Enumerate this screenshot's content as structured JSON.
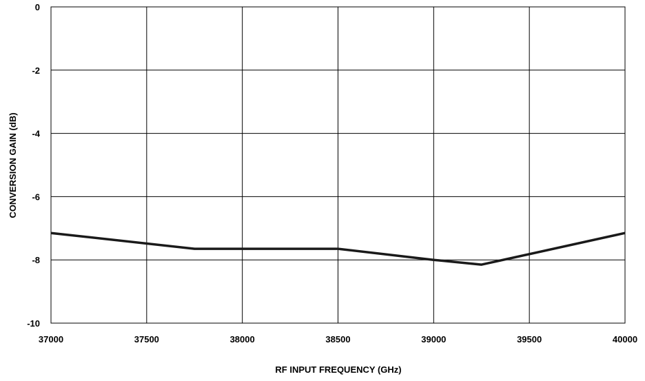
{
  "chart_data": {
    "type": "line",
    "title": "",
    "xlabel": "RF INPUT FREQUENCY (GHz)",
    "ylabel": "CONVERSION GAIN (dB)",
    "xlim": [
      37000,
      40000
    ],
    "ylim": [
      -10,
      0
    ],
    "x_ticks": [
      37000,
      37500,
      38000,
      38500,
      39000,
      39500,
      40000
    ],
    "y_ticks": [
      0,
      -2,
      -4,
      -6,
      -8,
      -10
    ],
    "x_tick_labels": [
      "37000",
      "37500",
      "38000",
      "38500",
      "39000",
      "39500",
      "40000"
    ],
    "y_tick_labels": [
      "0",
      "-2",
      "-4",
      "-6",
      "-8",
      "-10"
    ],
    "grid": true,
    "legend": "none",
    "series": [
      {
        "x": [
          37000,
          37750,
          38500,
          39000,
          39250,
          40000
        ],
        "y": [
          -7.15,
          -7.65,
          -7.65,
          -8.0,
          -8.15,
          -7.15
        ],
        "color": "#1a1a1a"
      }
    ]
  }
}
